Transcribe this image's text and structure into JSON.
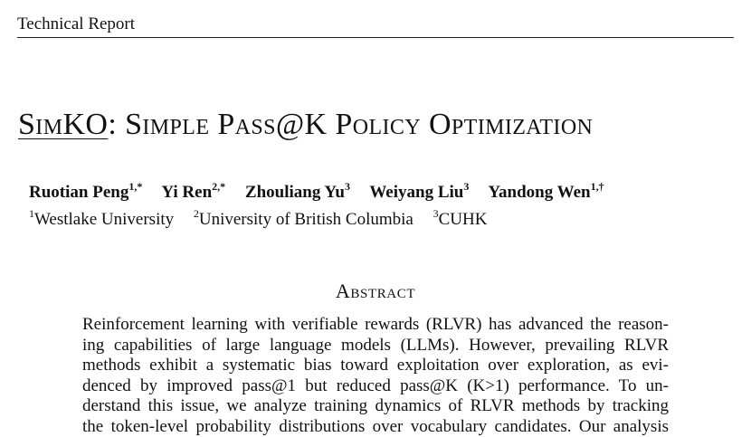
{
  "header": {
    "running_head": "Technical Report"
  },
  "title": {
    "short_name": "SimKO",
    "rest": ": Simple Pass@K Policy Optimization"
  },
  "authors": [
    {
      "name": "Ruotian Peng",
      "marks": "1,*"
    },
    {
      "name": "Yi Ren",
      "marks": "2,*"
    },
    {
      "name": "Zhouliang Yu",
      "marks": "3"
    },
    {
      "name": "Weiyang Liu",
      "marks": "3"
    },
    {
      "name": "Yandong Wen",
      "marks": "1,†"
    }
  ],
  "affiliations": [
    {
      "mark": "1",
      "name": "Westlake University"
    },
    {
      "mark": "2",
      "name": "University of British Columbia"
    },
    {
      "mark": "3",
      "name": "CUHK"
    }
  ],
  "abstract": {
    "heading": "Abstract",
    "lines": [
      "Reinforcement learning with verifiable rewards (RLVR) has advanced the reason-",
      "ing capabilities of large language models (LLMs). However, prevailing RLVR",
      "methods exhibit a systematic bias toward exploitation over exploration, as evi-",
      "denced by improved pass@1 but reduced pass@K (K>1) performance. To un-",
      "derstand this issue, we analyze training dynamics of RLVR methods by tracking",
      "the token-level probability distributions over vocabulary candidates. Our analysis"
    ]
  }
}
